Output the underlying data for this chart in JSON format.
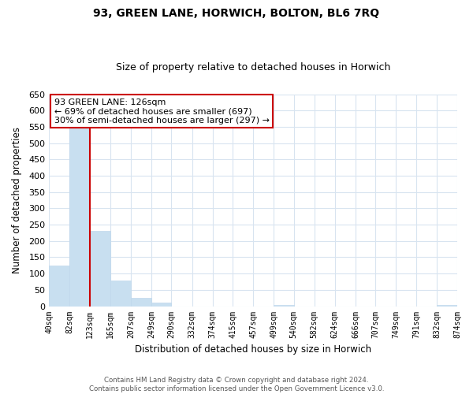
{
  "title": "93, GREEN LANE, HORWICH, BOLTON, BL6 7RQ",
  "subtitle": "Size of property relative to detached houses in Horwich",
  "xlabel": "Distribution of detached houses by size in Horwich",
  "ylabel": "Number of detached properties",
  "footer_line1": "Contains HM Land Registry data © Crown copyright and database right 2024.",
  "footer_line2": "Contains public sector information licensed under the Open Government Licence v3.0.",
  "bar_edges": [
    40,
    82,
    123,
    165,
    207,
    249,
    290,
    332,
    374,
    415,
    457,
    499,
    540,
    582,
    624,
    666,
    707,
    749,
    791,
    832,
    874
  ],
  "bar_heights": [
    125,
    545,
    230,
    78,
    25,
    12,
    0,
    0,
    0,
    0,
    0,
    3,
    0,
    0,
    0,
    0,
    0,
    0,
    0,
    3
  ],
  "bar_color": "#c8dff0",
  "bar_edge_color": "#c0d8ec",
  "property_line_x": 123,
  "property_line_color": "#cc0000",
  "annotation_title": "93 GREEN LANE: 126sqm",
  "annotation_line1": "← 69% of detached houses are smaller (697)",
  "annotation_line2": "30% of semi-detached houses are larger (297) →",
  "annotation_box_color": "#cc0000",
  "ylim": [
    0,
    650
  ],
  "yticks": [
    0,
    50,
    100,
    150,
    200,
    250,
    300,
    350,
    400,
    450,
    500,
    550,
    600,
    650
  ],
  "tick_labels": [
    "40sqm",
    "82sqm",
    "123sqm",
    "165sqm",
    "207sqm",
    "249sqm",
    "290sqm",
    "332sqm",
    "374sqm",
    "415sqm",
    "457sqm",
    "499sqm",
    "540sqm",
    "582sqm",
    "624sqm",
    "666sqm",
    "707sqm",
    "749sqm",
    "791sqm",
    "832sqm",
    "874sqm"
  ],
  "grid_color": "#d8e4f0"
}
